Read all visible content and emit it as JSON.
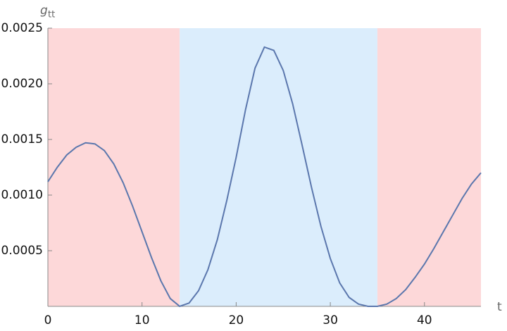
{
  "chart_data": {
    "type": "line",
    "y_label": "g",
    "y_label_subscript": "tt",
    "x_label": "t",
    "x": [
      0,
      1,
      2,
      3,
      4,
      5,
      6,
      7,
      8,
      9,
      10,
      11,
      12,
      13,
      14,
      15,
      16,
      17,
      18,
      19,
      20,
      21,
      22,
      23,
      24,
      25,
      26,
      27,
      28,
      29,
      30,
      31,
      32,
      33,
      34,
      35,
      36,
      37,
      38,
      39,
      40,
      41,
      42,
      43,
      44,
      45,
      46
    ],
    "series": [
      {
        "color": "#5b77ad",
        "values": [
          0.00112,
          0.00125,
          0.00136,
          0.00143,
          0.00147,
          0.00146,
          0.0014,
          0.00128,
          0.00111,
          0.0009,
          0.00067,
          0.00044,
          0.00023,
          7e-05,
          0,
          3e-05,
          0.00014,
          0.00033,
          0.0006,
          0.00095,
          0.00134,
          0.00177,
          0.00214,
          0.00233,
          0.0023,
          0.00212,
          0.00182,
          0.00145,
          0.00107,
          0.00072,
          0.00043,
          0.00021,
          8e-05,
          2e-05,
          0,
          0,
          2e-05,
          7e-05,
          0.00015,
          0.00026,
          0.00038,
          0.00052,
          0.00067,
          0.00082,
          0.00097,
          0.0011,
          0.0012
        ]
      }
    ],
    "regions": [
      {
        "start": 0,
        "end": 14,
        "color": "#fdd8d9"
      },
      {
        "start": 14,
        "end": 35,
        "color": "#dbedfc"
      },
      {
        "start": 35,
        "end": 46,
        "color": "#fdd8d9"
      }
    ],
    "xlim": [
      0,
      46
    ],
    "ylim": [
      0,
      0.0025
    ],
    "xticks": [
      0,
      10,
      20,
      30,
      40
    ],
    "yticks": [
      0.0005,
      {
        "value": 0.001,
        "label": "0.0010"
      },
      0.0015,
      {
        "value": 0.002,
        "label": "0.0020"
      },
      0.0025
    ]
  }
}
